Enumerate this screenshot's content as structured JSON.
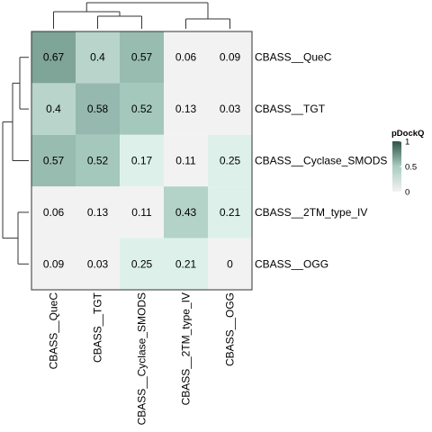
{
  "chart_data": {
    "type": "heatmap",
    "title": "",
    "rows": [
      "CBASS__QueC",
      "CBASS__TGT",
      "CBASS__Cyclase_SMODS",
      "CBASS__2TM_type_IV",
      "CBASS__OGG"
    ],
    "columns": [
      "CBASS__QueC",
      "CBASS__TGT",
      "CBASS__Cyclase_SMODS",
      "CBASS__2TM_type_IV",
      "CBASS__OGG"
    ],
    "values": [
      [
        0.67,
        0.4,
        0.57,
        0.06,
        0.09
      ],
      [
        0.4,
        0.58,
        0.52,
        0.13,
        0.03
      ],
      [
        0.57,
        0.52,
        0.17,
        0.11,
        0.25
      ],
      [
        0.06,
        0.13,
        0.11,
        0.43,
        0.21
      ],
      [
        0.09,
        0.03,
        0.25,
        0.21,
        0
      ]
    ],
    "cell_labels": [
      [
        "0.67",
        "0.4",
        "0.57",
        "0.06",
        "0.09"
      ],
      [
        "0.4",
        "0.58",
        "0.52",
        "0.13",
        "0.03"
      ],
      [
        "0.57",
        "0.52",
        "0.17",
        "0.11",
        "0.25"
      ],
      [
        "0.06",
        "0.13",
        "0.11",
        "0.43",
        "0.21"
      ],
      [
        "0.09",
        "0.03",
        "0.25",
        "0.21",
        "0"
      ]
    ],
    "legend": {
      "title": "pDockQ",
      "placement": "right",
      "ticks": [
        0,
        0.5,
        1
      ],
      "tick_labels": [
        "0",
        "0.5",
        "1"
      ],
      "range": [
        0,
        1
      ]
    },
    "colors": {
      "low": "#f2f2f2",
      "mid": "#a9cdc1",
      "high": "#2d5348",
      "highlight": "#ddf1ea"
    },
    "highlight_threshold": [
      0.15,
      0.3
    ],
    "column_dendrogram": true,
    "row_dendrogram": true
  }
}
